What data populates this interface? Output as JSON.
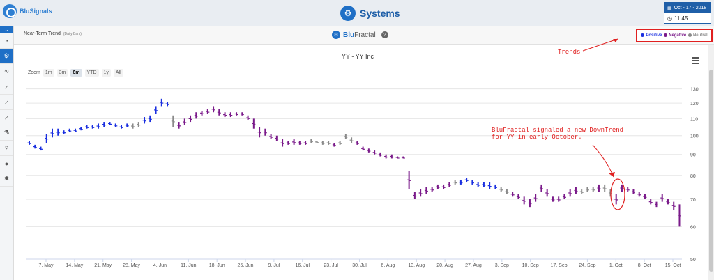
{
  "app": {
    "brand": "BluSignals",
    "title": "Systems",
    "date": "Oct - 17 - 2018",
    "time": "11:45"
  },
  "sidebar": {
    "items": [
      "gauge-icon",
      "systems-icon",
      "chart-icon-1",
      "chart-icon-2",
      "chart-icon-3",
      "chart-icon-4",
      "flask-icon",
      "help-icon",
      "user-icon",
      "gear-icon"
    ]
  },
  "panel": {
    "title": "Near-Term Trend",
    "subtitle": "(Daily Bars)",
    "center_brand_1": "Blu",
    "center_brand_2": "Fractal"
  },
  "legend": {
    "items": [
      {
        "label": "Positive",
        "color": "#1a2fe0"
      },
      {
        "label": "Negative",
        "color": "#7a1a8a"
      },
      {
        "label": "Neutral",
        "color": "#8a8a8a"
      }
    ]
  },
  "zoom": {
    "label": "Zoom",
    "options": [
      "1m",
      "3m",
      "6m",
      "YTD",
      "1y",
      "All"
    ],
    "selected": "6m"
  },
  "annotations": {
    "trends": "Trends",
    "signal_line1": "BluFractal signaled a new DownTrend",
    "signal_line2": "for YY in early October."
  },
  "chart_data": {
    "type": "bar",
    "title": "YY - YY Inc",
    "y_scale": "log",
    "ylim": [
      50,
      135
    ],
    "y_ticks": [
      130,
      120,
      110,
      100,
      90,
      80,
      70,
      60,
      50
    ],
    "x_ticks": [
      "7. May",
      "14. May",
      "21. May",
      "28. May",
      "4. Jun",
      "11. Jun",
      "18. Jun",
      "25. Jun",
      "9. Jul",
      "16. Jul",
      "23. Jul",
      "30. Jul",
      "6. Aug",
      "13. Aug",
      "20. Aug",
      "27. Aug",
      "3. Sep",
      "10. Sep",
      "17. Sep",
      "24. Sep",
      "1. Oct",
      "8. Oct",
      "15. Oct"
    ],
    "colors": {
      "P": "#1a2fe0",
      "N": "#7a1a8a",
      "U": "#8a8a8a"
    },
    "bars": [
      [
        "P",
        97,
        95
      ],
      [
        "P",
        95,
        93
      ],
      [
        "P",
        94,
        92
      ],
      [
        "P",
        101,
        96
      ],
      [
        "P",
        104,
        99
      ],
      [
        "P",
        104,
        100
      ],
      [
        "P",
        103,
        101
      ],
      [
        "P",
        104,
        102
      ],
      [
        "P",
        104,
        102
      ],
      [
        "P",
        105,
        103
      ],
      [
        "P",
        106,
        104
      ],
      [
        "P",
        106,
        104
      ],
      [
        "P",
        107,
        104
      ],
      [
        "P",
        108,
        105
      ],
      [
        "P",
        108,
        106
      ],
      [
        "P",
        107,
        105
      ],
      [
        "P",
        106,
        104
      ],
      [
        "P",
        107,
        105
      ],
      [
        "U",
        107,
        104
      ],
      [
        "U",
        108,
        105
      ],
      [
        "P",
        111,
        107
      ],
      [
        "P",
        112,
        108
      ],
      [
        "P",
        118,
        113
      ],
      [
        "P",
        123,
        118
      ],
      [
        "P",
        121,
        118
      ],
      [
        "U",
        112,
        105
      ],
      [
        "N",
        108,
        104
      ],
      [
        "N",
        110,
        106
      ],
      [
        "N",
        112,
        108
      ],
      [
        "N",
        114,
        110
      ],
      [
        "N",
        115,
        112
      ],
      [
        "N",
        116,
        113
      ],
      [
        "N",
        118,
        114
      ],
      [
        "N",
        116,
        112
      ],
      [
        "N",
        114,
        111
      ],
      [
        "N",
        114,
        111
      ],
      [
        "N",
        114,
        112
      ],
      [
        "N",
        114,
        112
      ],
      [
        "N",
        112,
        109
      ],
      [
        "N",
        110,
        104
      ],
      [
        "N",
        105,
        99
      ],
      [
        "N",
        104,
        100
      ],
      [
        "N",
        101,
        98
      ],
      [
        "N",
        100,
        97
      ],
      [
        "N",
        98,
        94
      ],
      [
        "N",
        97,
        95
      ],
      [
        "N",
        98,
        95
      ],
      [
        "N",
        97,
        95
      ],
      [
        "N",
        97,
        95
      ],
      [
        "U",
        98,
        96
      ],
      [
        "U",
        97,
        96
      ],
      [
        "U",
        97,
        95
      ],
      [
        "U",
        97,
        95
      ],
      [
        "N",
        96,
        94
      ],
      [
        "U",
        97,
        95
      ],
      [
        "U",
        101,
        98
      ],
      [
        "U",
        99,
        96
      ],
      [
        "N",
        97,
        95
      ],
      [
        "N",
        94,
        92
      ],
      [
        "N",
        93,
        91
      ],
      [
        "N",
        92,
        90
      ],
      [
        "N",
        91,
        89
      ],
      [
        "N",
        90,
        88
      ],
      [
        "N",
        90,
        88
      ],
      [
        "N",
        89,
        88
      ],
      [
        "N",
        89,
        88
      ],
      [
        "N",
        82,
        74
      ],
      [
        "N",
        73,
        70
      ],
      [
        "N",
        74,
        71
      ],
      [
        "N",
        75,
        72
      ],
      [
        "N",
        75,
        73
      ],
      [
        "N",
        76,
        74
      ],
      [
        "N",
        76,
        74
      ],
      [
        "N",
        77,
        75
      ],
      [
        "U",
        78,
        76
      ],
      [
        "P",
        78,
        76
      ],
      [
        "P",
        79,
        77
      ],
      [
        "P",
        78,
        76
      ],
      [
        "P",
        77,
        75
      ],
      [
        "P",
        77,
        75
      ],
      [
        "P",
        77,
        74
      ],
      [
        "P",
        76,
        74
      ],
      [
        "U",
        75,
        73
      ],
      [
        "U",
        74,
        72
      ],
      [
        "N",
        73,
        71
      ],
      [
        "N",
        72,
        70
      ],
      [
        "N",
        71,
        68
      ],
      [
        "N",
        70,
        67
      ],
      [
        "N",
        72,
        69
      ],
      [
        "N",
        76,
        73
      ],
      [
        "N",
        74,
        71
      ],
      [
        "N",
        71,
        69
      ],
      [
        "N",
        71,
        69
      ],
      [
        "N",
        72,
        70
      ],
      [
        "N",
        74,
        71
      ],
      [
        "N",
        75,
        72
      ],
      [
        "U",
        74,
        72
      ],
      [
        "U",
        75,
        73
      ],
      [
        "U",
        75,
        73
      ],
      [
        "N",
        76,
        73
      ],
      [
        "U",
        76,
        73
      ],
      [
        "U",
        74,
        71
      ],
      [
        "N",
        72,
        68
      ],
      [
        "N",
        76,
        73
      ],
      [
        "N",
        75,
        73
      ],
      [
        "N",
        74,
        72
      ],
      [
        "N",
        73,
        71
      ],
      [
        "N",
        72,
        70
      ],
      [
        "N",
        70,
        68
      ],
      [
        "N",
        69,
        67
      ],
      [
        "N",
        72,
        69
      ],
      [
        "N",
        70,
        68
      ],
      [
        "N",
        69,
        66
      ],
      [
        "N",
        68,
        60
      ]
    ]
  }
}
